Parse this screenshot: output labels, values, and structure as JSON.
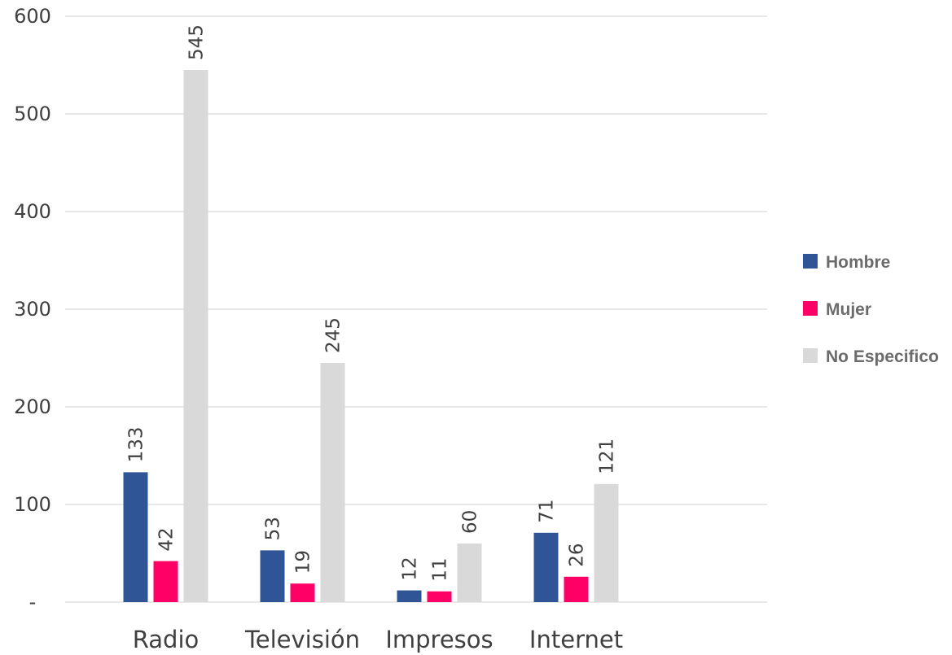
{
  "chart_data": {
    "type": "bar",
    "categories": [
      "Radio",
      "Televisión",
      "Impresos",
      "Internet"
    ],
    "series": [
      {
        "name": "Hombre",
        "values": [
          133,
          53,
          12,
          71
        ],
        "color": "#2f5597"
      },
      {
        "name": "Mujer",
        "values": [
          42,
          19,
          11,
          26
        ],
        "color": "#ff0066"
      },
      {
        "name": "No Especifico",
        "values": [
          545,
          245,
          60,
          121
        ],
        "color": "#d9d9d9"
      }
    ],
    "ylim": [
      0,
      600
    ],
    "yticks": [
      0,
      100,
      200,
      300,
      400,
      500,
      600
    ],
    "ytick_labels": [
      "-",
      "100",
      "200",
      "300",
      "400",
      "500",
      "600"
    ],
    "grid": true,
    "legend": "right",
    "data_labels": "rotated"
  }
}
